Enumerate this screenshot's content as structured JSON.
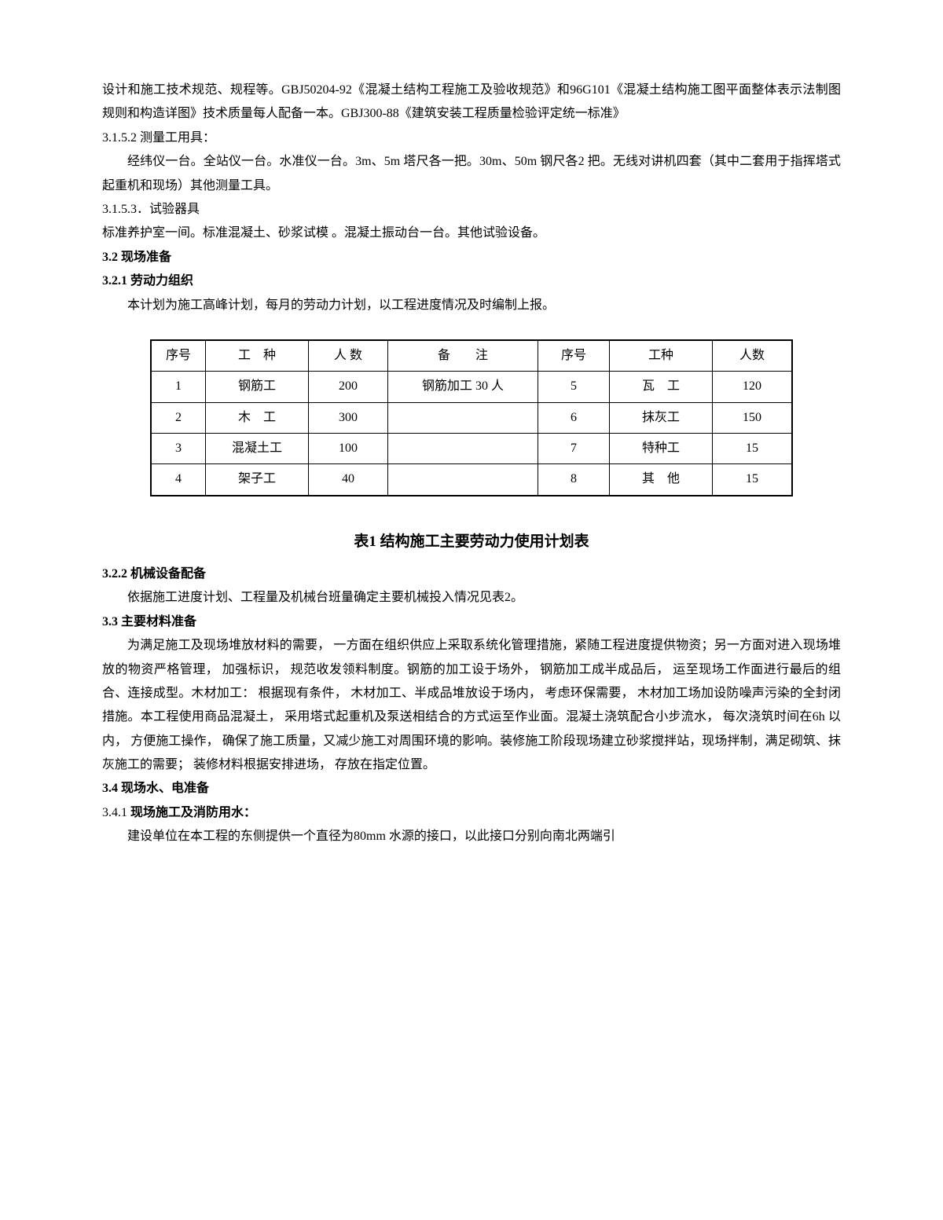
{
  "p1": "设计和施工技术规范、规程等。GBJ50204-92《混凝土结构工程施工及验收规范》和96G101《混凝土结构施工图平面整体表示法制图规则和构造详图》技术质量每人配备一本。GBJ300-88《建筑安装工程质量检验评定统一标准》",
  "s3152": "3.1.5.2 测量工用具：",
  "p3152": "经纬仪一台。全站仪一台。水准仪一台。3m、5m 塔尺各一把。30m、50m 钢尺各2 把。无线对讲机四套（其中二套用于指挥塔式起重机和现场）其他测量工具。",
  "s3153": "3.1.5.3．试验器具",
  "p3153": "标准养护室一间。标准混凝土、砂浆试模 。混凝土振动台一台。其他试验设备。",
  "s32": "3.2 现场准备",
  "s321": "3.2.1 劳动力组织",
  "p321": "本计划为施工高峰计划，每月的劳动力计划，以工程进度情况及时编制上报。",
  "table": {
    "headers": [
      "序号",
      "工　种",
      "人 数",
      "备　　注",
      "序号",
      "工种",
      "人数"
    ],
    "rows": [
      [
        "1",
        "钢筋工",
        "200",
        "钢筋加工 30 人",
        "5",
        "瓦　工",
        "120"
      ],
      [
        "2",
        "木　工",
        "300",
        "",
        "6",
        "抹灰工",
        "150"
      ],
      [
        "3",
        "混凝土工",
        "100",
        "",
        "7",
        "特种工",
        "15"
      ],
      [
        "4",
        "架子工",
        "40",
        "",
        "8",
        "其　他",
        "15"
      ]
    ]
  },
  "caption": "表1 结构施工主要劳动力使用计划表",
  "s322": "3.2.2 机械设备配备",
  "p322": "依据施工进度计划、工程量及机械台班量确定主要机械投入情况见表2。",
  "s33": "3.3 主要材料准备",
  "p33": "为满足施工及现场堆放材料的需要， 一方面在组织供应上采取系统化管理措施，紧随工程进度提供物资；另一方面对进入现场堆放的物资严格管理， 加强标识， 规范收发领料制度。钢筋的加工设于场外， 钢筋加工成半成品后， 运至现场工作面进行最后的组合、连接成型。木材加工： 根据现有条件， 木材加工、半成品堆放设于场内， 考虑环保需要， 木材加工场加设防噪声污染的全封闭措施。本工程使用商品混凝土， 采用塔式起重机及泵送相结合的方式运至作业面。混凝土浇筑配合小步流水， 每次浇筑时间在6h 以内， 方便施工操作， 确保了施工质量，又减少施工对周围环境的影响。装修施工阶段现场建立砂浆搅拌站，现场拌制，满足砌筑、抹灰施工的需要； 装修材料根据安排进场， 存放在指定位置。",
  "s34": "3.4 现场水、电准备",
  "s341": "3.4.1 现场施工及消防用水：",
  "p341": "建设单位在本工程的东侧提供一个直径为80mm 水源的接口，以此接口分别向南北两端引"
}
